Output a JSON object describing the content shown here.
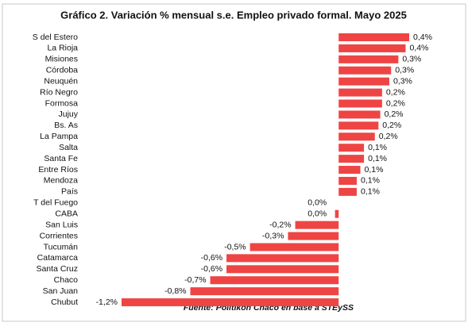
{
  "chart_data": {
    "type": "bar",
    "orientation": "horizontal",
    "title": "Gráfico 2. Variación % mensual s.e. Empleo privado formal. Mayo 2025",
    "source": "Fuente: Politikon Chaco en base a STEySS",
    "color": "#ef4444",
    "categories": [
      "S del Estero",
      "La Rioja",
      "Misiones",
      "Córdoba",
      "Neuquén",
      "Río Negro",
      "Formosa",
      "Jujuy",
      "Bs. As",
      "La Pampa",
      "Salta",
      "Santa Fe",
      "Entre Ríos",
      "Mendoza",
      "País",
      "T del Fuego",
      "CABA",
      "San Luis",
      "Corrientes",
      "Tucumán",
      "Catamarca",
      "Santa Cruz",
      "Chaco",
      "San Juan",
      "Chubut"
    ],
    "values": [
      0.39,
      0.37,
      0.33,
      0.29,
      0.28,
      0.24,
      0.24,
      0.23,
      0.22,
      0.2,
      0.14,
      0.14,
      0.12,
      0.1,
      0.1,
      0.0,
      -0.02,
      -0.24,
      -0.28,
      -0.49,
      -0.62,
      -0.62,
      -0.71,
      -0.82,
      -1.2
    ],
    "value_labels": [
      "0,4%",
      "0,4%",
      "0,3%",
      "0,3%",
      "0,3%",
      "0,2%",
      "0,2%",
      "0,2%",
      "0,2%",
      "0,2%",
      "0,1%",
      "0,1%",
      "0,1%",
      "0,1%",
      "0,1%",
      "0,0%",
      "0,0%",
      "-0,2%",
      "-0,3%",
      "-0,5%",
      "-0,6%",
      "-0,6%",
      "-0,7%",
      "-0,8%",
      "-1,2%"
    ]
  }
}
